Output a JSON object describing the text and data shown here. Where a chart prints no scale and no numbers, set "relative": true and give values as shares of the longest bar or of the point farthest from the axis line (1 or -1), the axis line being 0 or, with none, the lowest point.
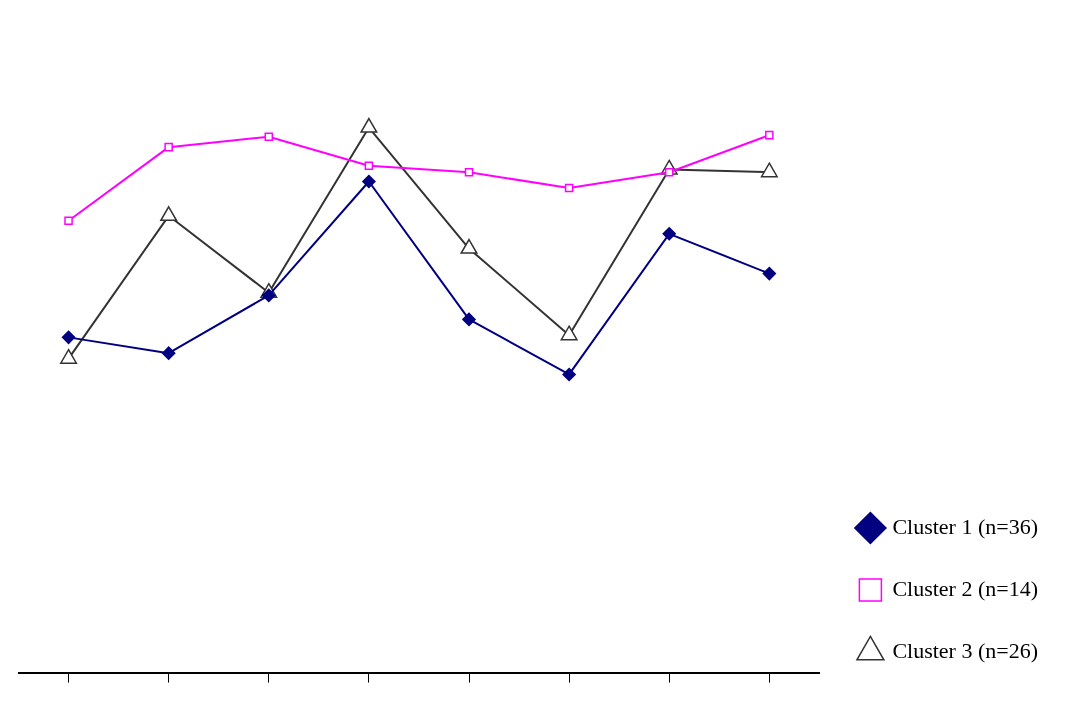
{
  "chart_data": {
    "type": "line",
    "relative": true,
    "categories": [
      null,
      null,
      null,
      null,
      null,
      null,
      null,
      null
    ],
    "series": [
      {
        "name": "Cluster 1 (n=36)",
        "color": "#000080",
        "marker": "diamond",
        "values": [
          0.615,
          0.586,
          0.692,
          0.901,
          0.648,
          0.547,
          0.805,
          0.732
        ]
      },
      {
        "name": "Cluster 2 (n=14)",
        "color": "#ff00ff",
        "marker": "square",
        "values": [
          0.829,
          0.964,
          0.983,
          0.93,
          0.918,
          0.889,
          0.918,
          0.986
        ]
      },
      {
        "name": "Cluster 3 (n=26)",
        "color": "#333333",
        "marker": "triangle",
        "values": [
          0.576,
          0.838,
          0.697,
          1,
          0.778,
          0.619,
          0.923,
          0.918
        ]
      }
    ],
    "legend": "bottom right",
    "grid": false,
    "line_style": "solid"
  }
}
